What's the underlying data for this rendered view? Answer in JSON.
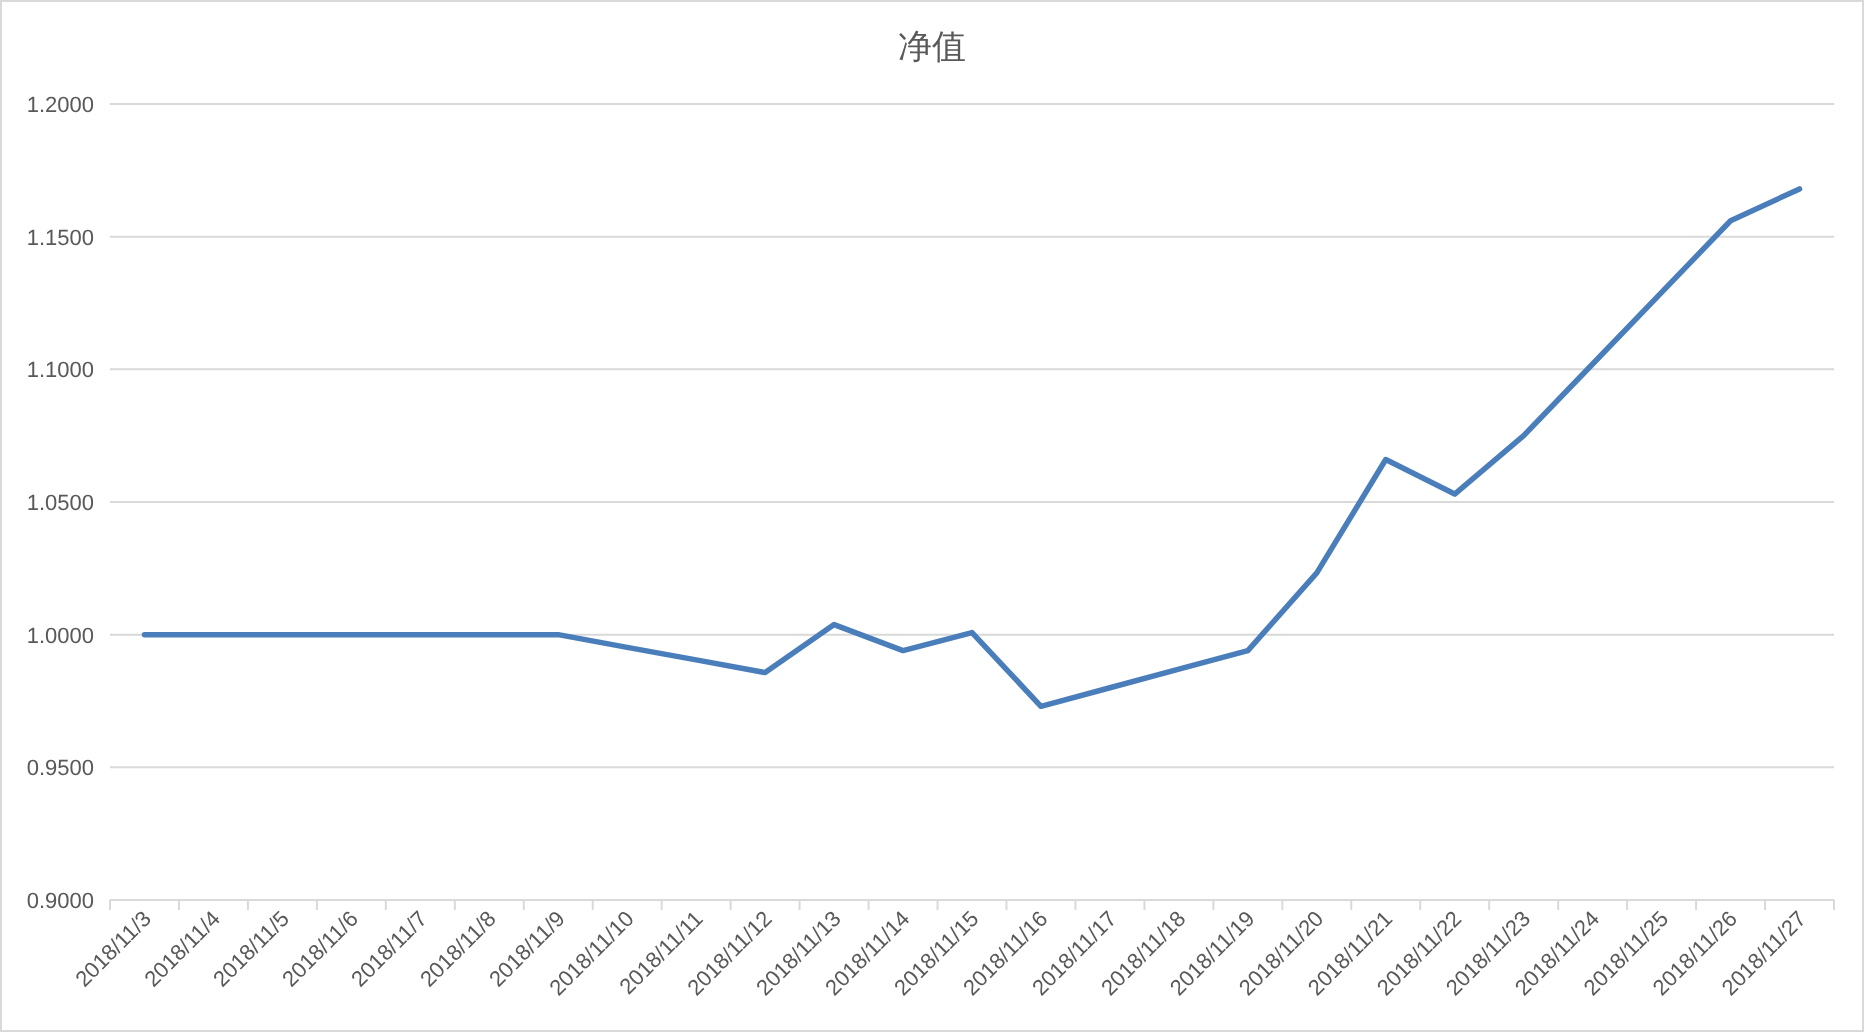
{
  "chart_data": {
    "type": "line",
    "title": "净值",
    "categories": [
      "2018/11/3",
      "2018/11/4",
      "2018/11/5",
      "2018/11/6",
      "2018/11/7",
      "2018/11/8",
      "2018/11/9",
      "2018/11/10",
      "2018/11/11",
      "2018/11/12",
      "2018/11/13",
      "2018/11/14",
      "2018/11/15",
      "2018/11/16",
      "2018/11/17",
      "2018/11/18",
      "2018/11/19",
      "2018/11/20",
      "2018/11/21",
      "2018/11/22",
      "2018/11/23",
      "2018/11/24",
      "2018/11/25",
      "2018/11/26",
      "2018/11/27"
    ],
    "series": [
      {
        "color": "#4a7ebb",
        "values": [
          1.0,
          1.0,
          1.0,
          1.0,
          1.0,
          1.0,
          1.0,
          0.9952,
          0.9905,
          0.9857,
          1.0038,
          0.994,
          1.0008,
          0.973,
          0.98,
          0.987,
          0.994,
          1.0233,
          1.066,
          1.053,
          1.075,
          1.102,
          1.129,
          1.156,
          1.168
        ]
      }
    ],
    "ylim": [
      0.9,
      1.2
    ],
    "yticks": [
      {
        "value": 0.9,
        "label": "0.9000"
      },
      {
        "value": 0.95,
        "label": "0.9500"
      },
      {
        "value": 1.0,
        "label": "1.0000"
      },
      {
        "value": 1.05,
        "label": "1.0500"
      },
      {
        "value": 1.1,
        "label": "1.1000"
      },
      {
        "value": 1.15,
        "label": "1.1500"
      },
      {
        "value": 1.2,
        "label": "1.2000"
      }
    ],
    "grid": "y",
    "marker": "none",
    "line_style": "solid"
  }
}
